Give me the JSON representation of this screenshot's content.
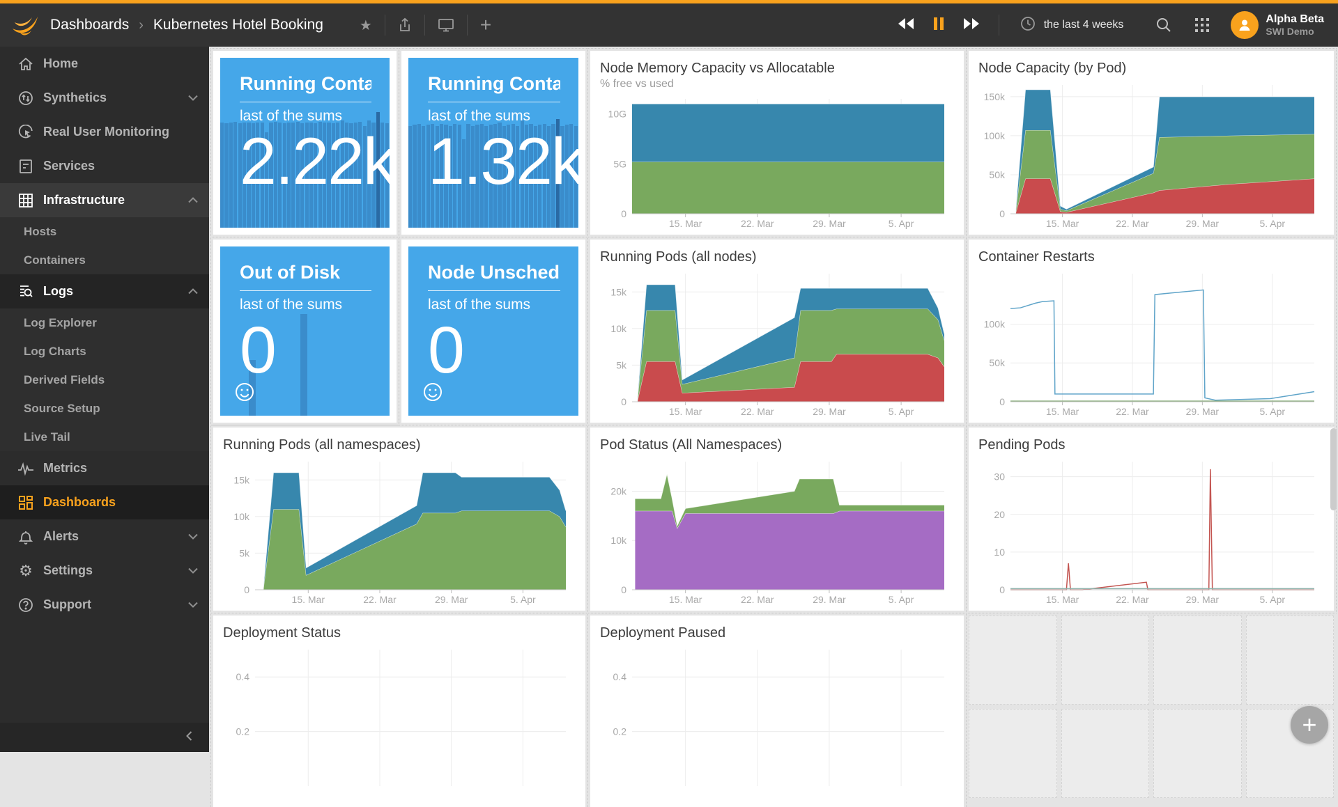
{
  "header": {
    "breadcrumb": {
      "root": "Dashboards",
      "separator": "›",
      "current": "Kubernetes Hotel Booking"
    },
    "time_range": "the last 4 weeks",
    "user": {
      "name": "Alpha Beta",
      "org": "SWI Demo"
    },
    "accent_color": "#f9a21d"
  },
  "sidebar": {
    "items": [
      {
        "label": "Home",
        "icon": "home-icon"
      },
      {
        "label": "Synthetics",
        "icon": "synthetics-icon",
        "chevron": "down"
      },
      {
        "label": "Real User Monitoring",
        "icon": "rum-icon"
      },
      {
        "label": "Services",
        "icon": "services-icon"
      },
      {
        "label": "Infrastructure",
        "icon": "infrastructure-icon",
        "chevron": "up",
        "expanded": true,
        "subitems": [
          "Hosts",
          "Containers"
        ]
      },
      {
        "label": "Logs",
        "icon": "logs-icon",
        "chevron": "up",
        "expanded": true,
        "subitems": [
          "Log Explorer",
          "Log Charts",
          "Derived Fields",
          "Source Setup",
          "Live Tail"
        ]
      },
      {
        "label": "Metrics",
        "icon": "metrics-icon"
      },
      {
        "label": "Dashboards",
        "icon": "dashboards-icon",
        "active": true
      },
      {
        "label": "Alerts",
        "icon": "alerts-icon",
        "chevron": "down"
      },
      {
        "label": "Settings",
        "icon": "settings-icon",
        "chevron": "down"
      },
      {
        "label": "Support",
        "icon": "support-icon",
        "chevron": "down"
      }
    ]
  },
  "tiles": [
    {
      "title": "Running Containers...",
      "subtitle": "last of the sums",
      "value": "2.22k",
      "bars": {
        "heights": [
          0.62,
          0.615,
          0.62,
          0.625,
          0.615,
          0.62,
          0.62,
          0.615,
          0.62,
          0.62,
          0.56,
          0.62,
          0.625,
          0.62,
          0.615,
          0.62,
          0.62,
          0.625,
          0.615,
          0.62,
          0.62,
          0.615,
          0.625,
          0.62,
          0.62,
          0.615,
          0.62,
          0.63,
          0.62,
          0.615,
          0.62,
          0.625,
          0.6,
          0.63,
          0.62,
          0.68,
          0.62,
          0.615
        ],
        "dark_index": 35
      }
    },
    {
      "title": "Running Containers...",
      "subtitle": "last of the sums",
      "value": "1.32k",
      "bars": {
        "heights": [
          0.6,
          0.605,
          0.61,
          0.6,
          0.605,
          0.61,
          0.6,
          0.61,
          0.605,
          0.6,
          0.61,
          0.605,
          0.52,
          0.61,
          0.6,
          0.605,
          0.61,
          0.6,
          0.605,
          0.61,
          0.62,
          0.6,
          0.605,
          0.61,
          0.6,
          0.63,
          0.605,
          0.61,
          0.6,
          0.605,
          0.61,
          0.6,
          0.61,
          0.64,
          0.6,
          0.605,
          0.61,
          0.6
        ],
        "dark_index": 33
      }
    },
    {
      "title": "Out of Disk",
      "subtitle": "last of the sums",
      "value": "0",
      "smiley": true,
      "spikes": [
        {
          "x": 0.17,
          "h": 0.33
        },
        {
          "x": 0.475,
          "h": 0.6
        }
      ]
    },
    {
      "title": "Node Unschedulable",
      "subtitle": "last of the sums",
      "value": "0",
      "smiley": true,
      "spikes": []
    }
  ],
  "charts": {
    "nodeMemory": {
      "title": "Node Memory Capacity vs Allocatable",
      "subtitle": "% free vs used",
      "type": "stacked-area",
      "xlim": [
        0,
        30.4
      ],
      "ylim": [
        0,
        11.5
      ],
      "x_ticks": [
        {
          "v": 5.2,
          "label": "15. Mar"
        },
        {
          "v": 12.2,
          "label": "22. Mar"
        },
        {
          "v": 19.2,
          "label": "29. Mar"
        },
        {
          "v": 26.2,
          "label": "5. Apr"
        }
      ],
      "y_ticks": [
        {
          "v": 10,
          "label": "10G"
        },
        {
          "v": 5,
          "label": "5G"
        },
        {
          "v": 0,
          "label": "0"
        }
      ],
      "x": [
        0,
        30.4
      ],
      "series": [
        {
          "name": "used",
          "color": "#79a95e",
          "values": [
            5.2,
            5.2
          ]
        },
        {
          "name": "free",
          "color": "#3787ad",
          "values": [
            5.8,
            5.8
          ]
        }
      ]
    },
    "nodeCapacity": {
      "title": "Node Capacity (by Pod)",
      "type": "stacked-area",
      "xlim": [
        0,
        30.4
      ],
      "ylim": [
        0,
        165
      ],
      "x_ticks": [
        {
          "v": 5.2,
          "label": "15. Mar"
        },
        {
          "v": 12.2,
          "label": "22. Mar"
        },
        {
          "v": 19.2,
          "label": "29. Mar"
        },
        {
          "v": 26.2,
          "label": "5. Apr"
        }
      ],
      "y_ticks": [
        {
          "v": 150,
          "label": "150k"
        },
        {
          "v": 100,
          "label": "100k"
        },
        {
          "v": 50,
          "label": "50k"
        },
        {
          "v": 0,
          "label": "0"
        }
      ],
      "x": [
        0.5,
        1.5,
        4.0,
        5.0,
        5.6,
        14.3,
        14.9,
        22,
        30.4
      ],
      "series": [
        {
          "name": "series-red",
          "color": "#c94b4d",
          "values": [
            0,
            45,
            45,
            3,
            2,
            27,
            30,
            38,
            45
          ]
        },
        {
          "name": "series-green",
          "color": "#79a95e",
          "values": [
            0,
            62,
            62,
            3,
            2,
            25,
            68,
            62,
            57
          ]
        },
        {
          "name": "series-blue",
          "color": "#3787ad",
          "values": [
            0,
            52,
            52,
            4,
            2,
            8,
            52,
            50,
            48
          ]
        }
      ]
    },
    "runningPodsNodes": {
      "title": "Running Pods (all nodes)",
      "type": "stacked-area",
      "xlim": [
        0,
        30.4
      ],
      "ylim": [
        0,
        17.5
      ],
      "x_ticks": [
        {
          "v": 5.2,
          "label": "15. Mar"
        },
        {
          "v": 12.2,
          "label": "22. Mar"
        },
        {
          "v": 19.2,
          "label": "29. Mar"
        },
        {
          "v": 26.2,
          "label": "5. Apr"
        }
      ],
      "y_ticks": [
        {
          "v": 15,
          "label": "15k"
        },
        {
          "v": 10,
          "label": "10k"
        },
        {
          "v": 5,
          "label": "5k"
        },
        {
          "v": 0,
          "label": "0"
        }
      ],
      "x": [
        0.5,
        1.4,
        4.2,
        4.9,
        15.8,
        16.4,
        19.4,
        19.9,
        28.8,
        29.8,
        30.4
      ],
      "series": [
        {
          "name": "series-red",
          "color": "#c94b4d",
          "values": [
            0,
            5.5,
            5.5,
            1.2,
            2.0,
            5.5,
            5.5,
            6.5,
            6.5,
            6.0,
            4.8
          ]
        },
        {
          "name": "series-green",
          "color": "#79a95e",
          "values": [
            0,
            7.0,
            7.0,
            1.2,
            4.0,
            7.0,
            7.0,
            6.2,
            6.2,
            5.2,
            3.6
          ]
        },
        {
          "name": "series-blue",
          "color": "#3787ad",
          "values": [
            0,
            3.5,
            3.5,
            0.6,
            5.5,
            3.0,
            3.0,
            2.8,
            2.8,
            1.6,
            0.9
          ]
        }
      ]
    },
    "containerRestarts": {
      "title": "Container Restarts",
      "type": "line",
      "xlim": [
        0,
        30.4
      ],
      "ylim": [
        0,
        165
      ],
      "x_ticks": [
        {
          "v": 5.2,
          "label": "15. Mar"
        },
        {
          "v": 12.2,
          "label": "22. Mar"
        },
        {
          "v": 19.2,
          "label": "29. Mar"
        },
        {
          "v": 26.2,
          "label": "5. Apr"
        }
      ],
      "y_ticks": [
        {
          "v": 100,
          "label": "100k"
        },
        {
          "v": 50,
          "label": "50k"
        },
        {
          "v": 0,
          "label": "0"
        }
      ],
      "series": [
        {
          "name": "restarts",
          "color": "#5fa4c9",
          "points": [
            [
              0,
              120
            ],
            [
              1,
              121
            ],
            [
              2.5,
              127
            ],
            [
              3.2,
              129
            ],
            [
              4.35,
              130
            ],
            [
              4.45,
              10
            ],
            [
              14.3,
              10
            ],
            [
              14.45,
              138
            ],
            [
              16,
              140
            ],
            [
              19.3,
              144
            ],
            [
              19.45,
              5
            ],
            [
              20.5,
              2
            ],
            [
              26,
              4
            ],
            [
              30.4,
              13
            ]
          ]
        },
        {
          "name": "baseline",
          "color": "#7fa76f",
          "points": [
            [
              0,
              0.8
            ],
            [
              30.4,
              0.8
            ]
          ]
        }
      ]
    },
    "runningPodsNs": {
      "title": "Running Pods (all namespaces)",
      "type": "stacked-area",
      "xlim": [
        0,
        30.4
      ],
      "ylim": [
        0,
        17.5
      ],
      "x_ticks": [
        {
          "v": 5.2,
          "label": "15. Mar"
        },
        {
          "v": 12.2,
          "label": "22. Mar"
        },
        {
          "v": 19.2,
          "label": "29. Mar"
        },
        {
          "v": 26.2,
          "label": "5. Apr"
        }
      ],
      "y_ticks": [
        {
          "v": 15,
          "label": "15k"
        },
        {
          "v": 10,
          "label": "10k"
        },
        {
          "v": 5,
          "label": "5k"
        },
        {
          "v": 0,
          "label": "0"
        }
      ],
      "x": [
        0.8,
        1.8,
        4.3,
        5.0,
        15.8,
        16.4,
        19.6,
        20.2,
        28.8,
        29.8,
        30.4
      ],
      "series": [
        {
          "name": "series-green",
          "color": "#79a95e",
          "values": [
            0,
            11,
            11,
            2.0,
            9.0,
            10.5,
            10.5,
            10.8,
            10.8,
            10.0,
            8.6
          ]
        },
        {
          "name": "series-blue",
          "color": "#3787ad",
          "values": [
            0,
            5,
            5,
            1.0,
            2.5,
            5.5,
            5.5,
            4.6,
            4.6,
            3.6,
            2.2
          ]
        }
      ]
    },
    "podStatus": {
      "title": "Pod Status (All Namespaces)",
      "type": "stacked-area",
      "xlim": [
        0,
        30.4
      ],
      "ylim": [
        0,
        26
      ],
      "x_ticks": [
        {
          "v": 5.2,
          "label": "15. Mar"
        },
        {
          "v": 12.2,
          "label": "22. Mar"
        },
        {
          "v": 19.2,
          "label": "29. Mar"
        },
        {
          "v": 26.2,
          "label": "5. Apr"
        }
      ],
      "y_ticks": [
        {
          "v": 20,
          "label": "20k"
        },
        {
          "v": 10,
          "label": "10k"
        },
        {
          "v": 0,
          "label": "0"
        }
      ],
      "x": [
        0.3,
        2.8,
        3.4,
        3.9,
        4.4,
        5.2,
        15.8,
        16.3,
        19.6,
        20.2,
        30.4
      ],
      "series": [
        {
          "name": "series-purple",
          "color": "#a56cc4",
          "values": [
            16,
            16,
            16,
            16,
            12.5,
            15.5,
            15.5,
            15.5,
            15.5,
            16,
            16
          ]
        },
        {
          "name": "series-green",
          "color": "#79a95e",
          "values": [
            2.5,
            2.5,
            7.5,
            2.5,
            0.5,
            1.0,
            4.5,
            7.0,
            7.0,
            1.2,
            1.2
          ]
        }
      ]
    },
    "pendingPods": {
      "title": "Pending Pods",
      "type": "line",
      "xlim": [
        0,
        30.4
      ],
      "ylim": [
        0,
        34
      ],
      "x_ticks": [
        {
          "v": 5.2,
          "label": "15. Mar"
        },
        {
          "v": 12.2,
          "label": "22. Mar"
        },
        {
          "v": 19.2,
          "label": "29. Mar"
        },
        {
          "v": 26.2,
          "label": "5. Apr"
        }
      ],
      "y_ticks": [
        {
          "v": 30,
          "label": "30"
        },
        {
          "v": 20,
          "label": "20"
        },
        {
          "v": 10,
          "label": "10"
        },
        {
          "v": 0,
          "label": "0"
        }
      ],
      "series": [
        {
          "name": "pending",
          "color": "#c35450",
          "points": [
            [
              0,
              0
            ],
            [
              5.6,
              0
            ],
            [
              5.8,
              7
            ],
            [
              6.0,
              0
            ],
            [
              7.2,
              0
            ],
            [
              13.6,
              2
            ],
            [
              13.75,
              0
            ],
            [
              19.85,
              0
            ],
            [
              20.0,
              32
            ],
            [
              20.2,
              0
            ],
            [
              30.4,
              0
            ]
          ]
        },
        {
          "name": "baseline",
          "color": "#8fb3ac",
          "points": [
            [
              0,
              0.3
            ],
            [
              30.4,
              0.3
            ]
          ]
        }
      ]
    },
    "deploymentStatus": {
      "title": "Deployment Status",
      "type": "empty",
      "xlim": [
        0,
        30.4
      ],
      "ylim": [
        0,
        0.5
      ],
      "x_ticks": [
        {
          "v": 5.2,
          "label": ""
        },
        {
          "v": 12.2,
          "label": ""
        },
        {
          "v": 19.2,
          "label": ""
        },
        {
          "v": 26.2,
          "label": ""
        }
      ],
      "y_ticks": [
        {
          "v": 0.4,
          "label": "0.4"
        },
        {
          "v": 0.2,
          "label": "0.2"
        }
      ],
      "series": []
    },
    "deploymentPaused": {
      "title": "Deployment Paused",
      "type": "empty",
      "xlim": [
        0,
        30.4
      ],
      "ylim": [
        0,
        0.5
      ],
      "x_ticks": [
        {
          "v": 5.2,
          "label": ""
        },
        {
          "v": 12.2,
          "label": ""
        },
        {
          "v": 19.2,
          "label": ""
        },
        {
          "v": 26.2,
          "label": ""
        }
      ],
      "y_ticks": [
        {
          "v": 0.4,
          "label": "0.4"
        },
        {
          "v": 0.2,
          "label": "0.2"
        }
      ],
      "series": []
    }
  },
  "fab": {
    "label": "+"
  }
}
